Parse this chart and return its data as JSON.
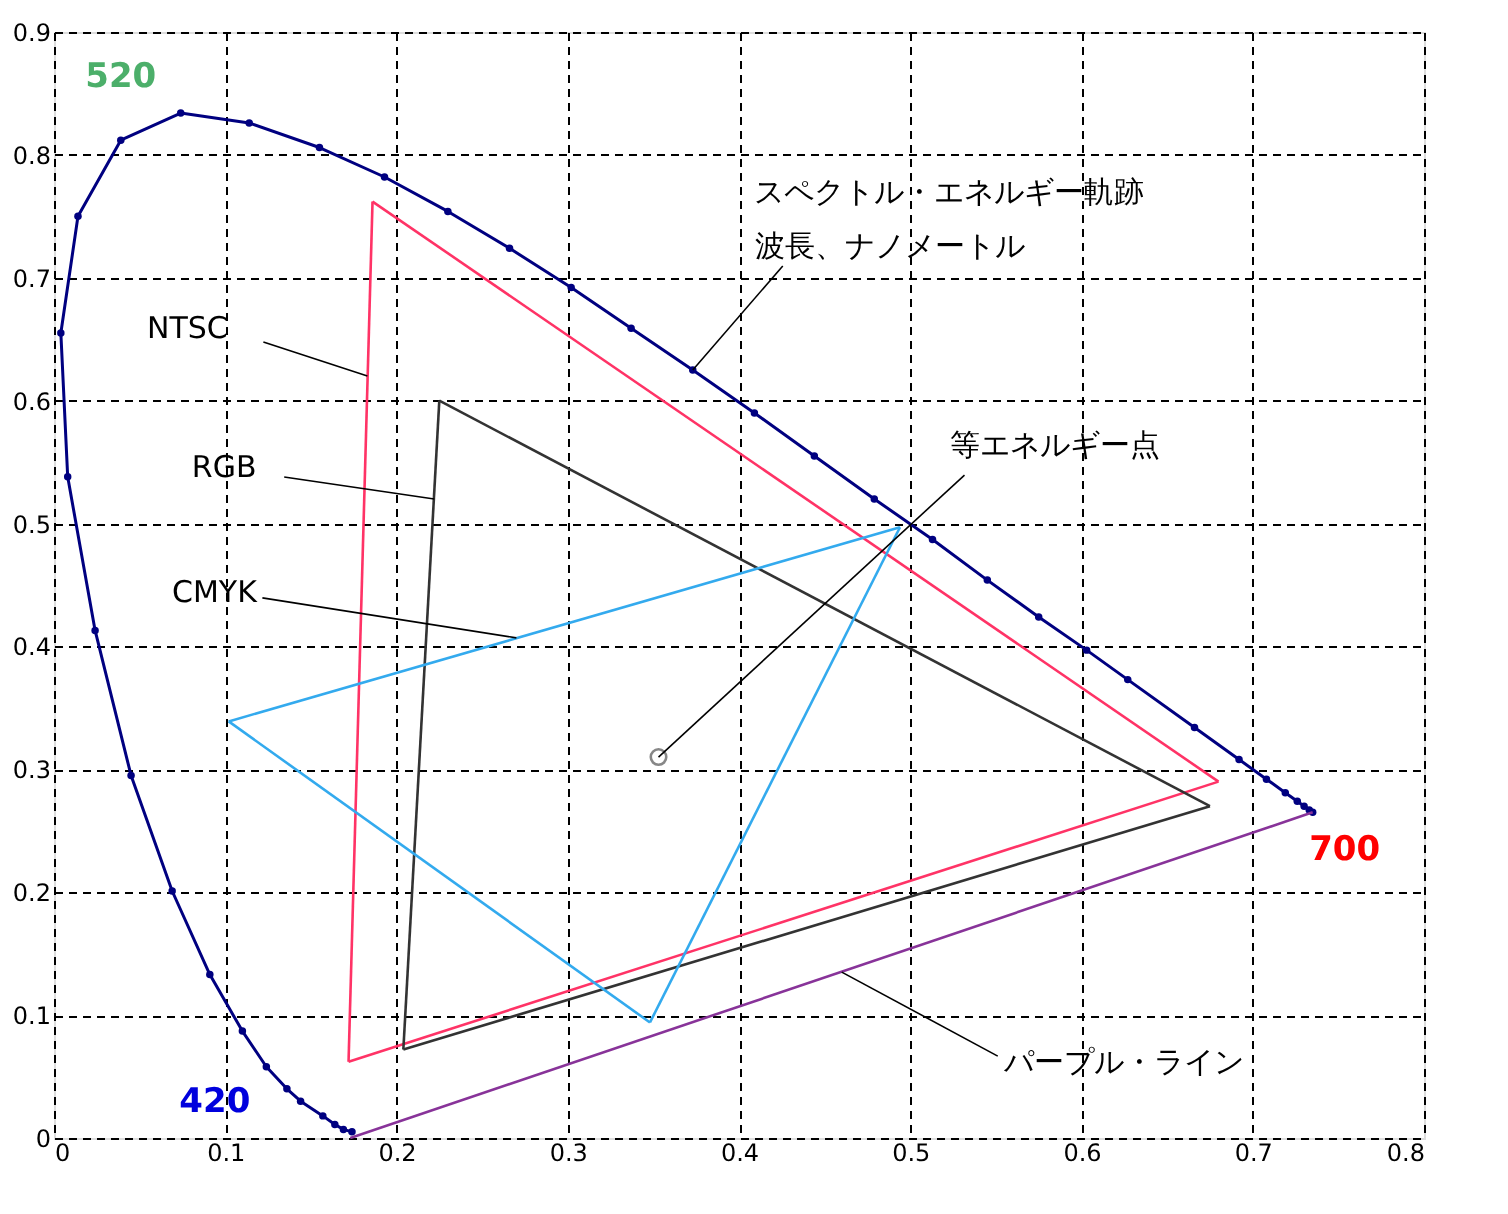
{
  "chart_data": {
    "type": "line",
    "xlim": [
      0,
      0.8
    ],
    "ylim": [
      0,
      0.9
    ],
    "xticks": [
      0,
      0.1,
      0.2,
      0.3,
      0.4,
      0.5,
      0.6,
      0.7,
      0.8
    ],
    "yticks": [
      0,
      0.1,
      0.2,
      0.3,
      0.4,
      0.5,
      0.6,
      0.7,
      0.8,
      0.9
    ],
    "grid": true,
    "series": [
      {
        "marker": "circle",
        "color": "#000080",
        "x": [
          0.174,
          0.169,
          0.164,
          0.157,
          0.144,
          0.136,
          0.124,
          0.11,
          0.091,
          0.069,
          0.045,
          0.024,
          0.008,
          0.004,
          0.014,
          0.039,
          0.074,
          0.114,
          0.155,
          0.193,
          0.23,
          0.266,
          0.302,
          0.337,
          0.373,
          0.409,
          0.444,
          0.479,
          0.513,
          0.545,
          0.575,
          0.603,
          0.627,
          0.666,
          0.692,
          0.708,
          0.719,
          0.726,
          0.73,
          0.733,
          0.735
        ],
        "values": [
          0.005,
          0.007,
          0.011,
          0.018,
          0.03,
          0.04,
          0.058,
          0.087,
          0.133,
          0.201,
          0.295,
          0.413,
          0.538,
          0.655,
          0.75,
          0.812,
          0.834,
          0.826,
          0.806,
          0.782,
          0.754,
          0.724,
          0.692,
          0.659,
          0.625,
          0.59,
          0.555,
          0.52,
          0.487,
          0.454,
          0.424,
          0.397,
          0.373,
          0.334,
          0.308,
          0.292,
          0.281,
          0.274,
          0.27,
          0.267,
          0.265
        ]
      },
      {
        "color": "#ff3366",
        "x": [
          0.186,
          0.172
        ],
        "values": [
          0.762,
          0.062
        ]
      },
      {
        "color": "#ff3366",
        "x": [
          0.172,
          0.68
        ],
        "values": [
          0.062,
          0.29
        ]
      },
      {
        "color": "#ff3366",
        "x": [
          0.68,
          0.186
        ],
        "values": [
          0.29,
          0.762
        ]
      },
      {
        "color": "#333333",
        "x": [
          0.225,
          0.204
        ],
        "values": [
          0.6,
          0.072
        ]
      },
      {
        "color": "#333333",
        "x": [
          0.204,
          0.675
        ],
        "values": [
          0.072,
          0.27
        ]
      },
      {
        "color": "#333333",
        "x": [
          0.675,
          0.225
        ],
        "values": [
          0.27,
          0.6
        ]
      },
      {
        "color": "#33aaee",
        "x": [
          0.102,
          0.494
        ],
        "values": [
          0.339,
          0.497
        ]
      },
      {
        "color": "#33aaee",
        "x": [
          0.494,
          0.348
        ],
        "values": [
          0.497,
          0.094
        ]
      },
      {
        "color": "#33aaee",
        "x": [
          0.348,
          0.102
        ],
        "values": [
          0.094,
          0.339
        ]
      },
      {
        "color": "#883399",
        "x": [
          0.173,
          0.735
        ],
        "values": [
          0.0,
          0.265
        ]
      },
      {
        "type": "scatter",
        "marker": "circle",
        "color": "#555555",
        "x": [
          0.353
        ],
        "values": [
          0.31
        ]
      }
    ],
    "annotations": [
      {
        "text": "520",
        "x": 0.074,
        "y": 0.834
      },
      {
        "text": "420",
        "x": 0.171,
        "y": 0.005
      },
      {
        "text": "700",
        "x": 0.735,
        "y": 0.265
      },
      {
        "text": "NTSC",
        "x": 0.183,
        "y": 0.62
      },
      {
        "text": "RGB",
        "x": 0.222,
        "y": 0.52
      },
      {
        "text": "CMYK",
        "x": 0.27,
        "y": 0.407
      },
      "スペクトル・エネルギー軌跡",
      {
        "text": "波長、ナノメートル",
        "x": 0.373,
        "y": 0.625
      },
      {
        "text": "等エネルギー点",
        "x": 0.353,
        "y": 0.31
      },
      {
        "text": "パープル・ライン",
        "x": 0.46,
        "y": 0.135
      }
    ]
  }
}
